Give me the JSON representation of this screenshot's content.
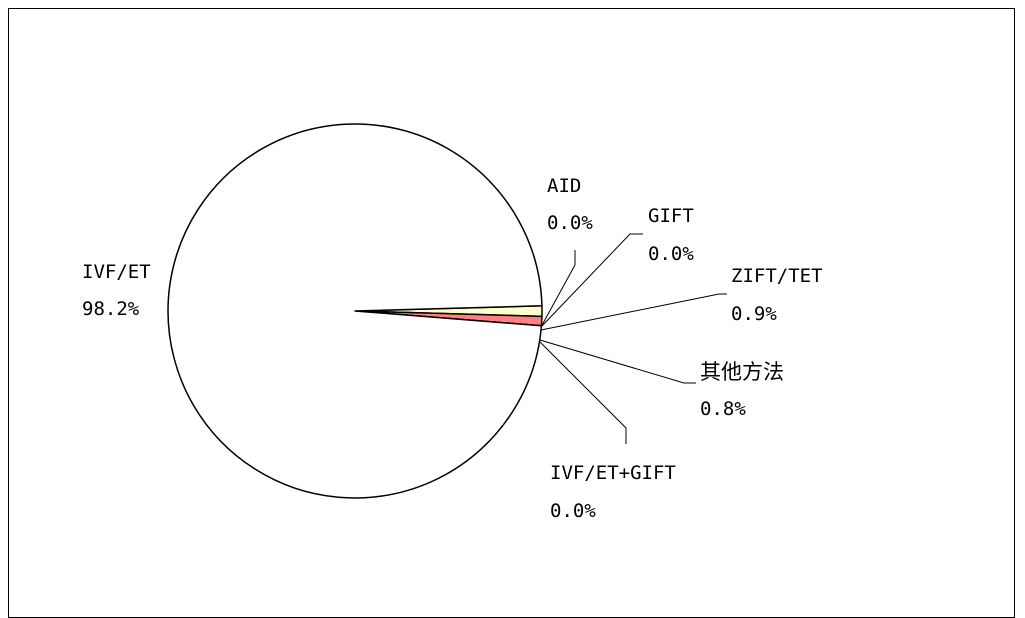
{
  "chart_data": {
    "type": "pie",
    "title": "",
    "slices": [
      {
        "label": "IVF/ET",
        "value_text": "98.2%",
        "value": 98.2,
        "color": "#ffffff"
      },
      {
        "label": "AID",
        "value_text": "0.0%",
        "value": 0.0,
        "color": "#ffffff"
      },
      {
        "label": "GIFT",
        "value_text": "0.0%",
        "value": 0.0,
        "color": "#ffffff"
      },
      {
        "label": "ZIFT/TET",
        "value_text": "0.9%",
        "value": 0.9,
        "color": "#ffffcc"
      },
      {
        "label": "其他方法",
        "value_text": "0.8%",
        "value": 0.8,
        "color": "#ff8080"
      },
      {
        "label": "IVF/ET+GIFT",
        "value_text": "0.0%",
        "value": 0.0,
        "color": "#ffffff"
      }
    ],
    "legend": "none",
    "stroke_color": "#000000"
  }
}
